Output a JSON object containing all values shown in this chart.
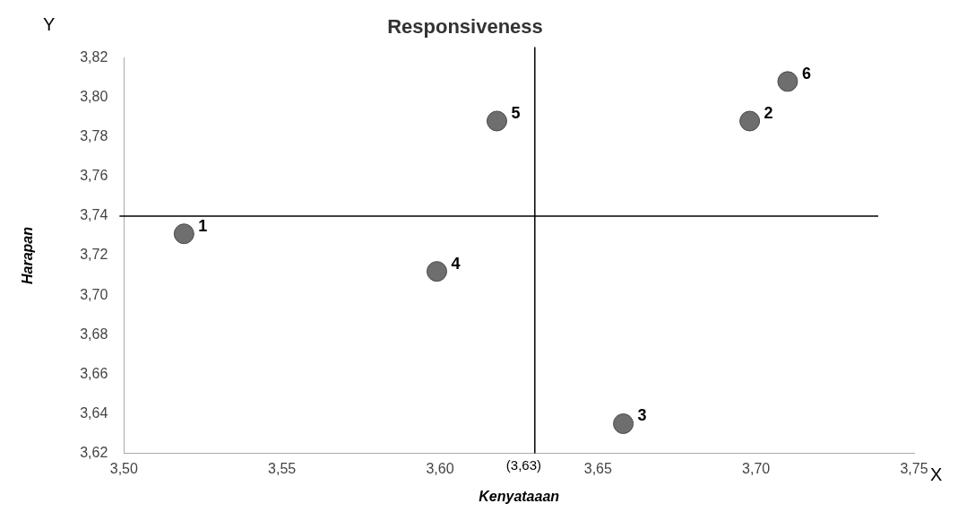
{
  "chart_data": {
    "type": "scatter",
    "title": "Responsiveness",
    "xlabel": "Kenyataaan",
    "ylabel": "Harapan",
    "x": [
      3.519,
      3.698,
      3.658,
      3.599,
      3.618,
      3.71
    ],
    "series": [
      {
        "color": "#6e6e6e",
        "values": [
          3.731,
          3.788,
          3.635,
          3.712,
          3.788,
          3.808
        ]
      }
    ],
    "marker": "circle",
    "grid": false,
    "legend": false,
    "xlim": [
      3.5,
      3.75
    ],
    "xticks": [
      {
        "value": 3.5,
        "label": "3,50"
      },
      {
        "value": 3.55,
        "label": "3,55"
      },
      {
        "value": 3.6,
        "label": "3,60"
      },
      {
        "value": 3.65,
        "label": "3,65"
      },
      {
        "value": 3.7,
        "label": "3,70"
      },
      {
        "value": 3.75,
        "label": "3,75"
      }
    ],
    "ylim": [
      3.62,
      3.82
    ],
    "yticks": [
      {
        "value": 3.62,
        "label": "3,62"
      },
      {
        "value": 3.64,
        "label": "3,64"
      },
      {
        "value": 3.66,
        "label": "3,66"
      },
      {
        "value": 3.68,
        "label": "3,68"
      },
      {
        "value": 3.7,
        "label": "3,70"
      },
      {
        "value": 3.72,
        "label": "3,72"
      },
      {
        "value": 3.74,
        "label": "3,74"
      },
      {
        "value": 3.76,
        "label": "3,76"
      },
      {
        "value": 3.78,
        "label": "3,78"
      },
      {
        "value": 3.8,
        "label": "3,80"
      },
      {
        "value": 3.82,
        "label": "3,82"
      }
    ],
    "ref_lines": [
      {
        "axis": "x",
        "value": 3.63,
        "label": "(3,63)",
        "color": "#000000"
      },
      {
        "axis": "y",
        "value": 3.74,
        "color": "#000000"
      }
    ],
    "annotations": [
      {
        "text": "1",
        "x": 3.519,
        "y": 3.731
      },
      {
        "text": "2",
        "x": 3.698,
        "y": 3.788
      },
      {
        "text": "3",
        "x": 3.658,
        "y": 3.635
      },
      {
        "text": "4",
        "x": 3.599,
        "y": 3.712
      },
      {
        "text": "5",
        "x": 3.618,
        "y": 3.788
      },
      {
        "text": "6",
        "x": 3.71,
        "y": 3.808
      },
      "X",
      "Y"
    ]
  }
}
